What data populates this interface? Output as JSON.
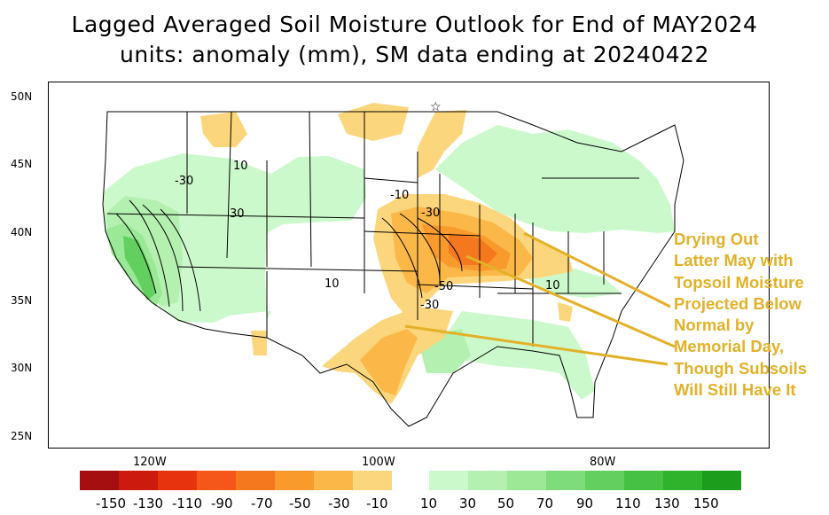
{
  "title": {
    "line1": "Lagged Averaged Soil Moisture Outlook for End of MAY2024",
    "line2": "units: anomaly (mm), SM data ending at 20240422"
  },
  "latitude_labels": [
    "50N",
    "45N",
    "40N",
    "35N",
    "30N",
    "25N"
  ],
  "longitude_labels": [
    "120W",
    "100W",
    "80W"
  ],
  "contour_labels": [
    "10",
    "-30",
    "-10",
    "-30",
    "-50",
    "-30",
    "10",
    "10",
    "30"
  ],
  "annotation": {
    "text": "Drying Out\nLatter May with\nTopsoil Moisture\nProjected Below\nNormal by\nMemorial Day,\nThough Subsoils\nWill Still Have It"
  },
  "colorbar": {
    "labels": [
      "-150",
      "-130",
      "-110",
      "-90",
      "-70",
      "-50",
      "-30",
      "-10",
      "10",
      "30",
      "50",
      "70",
      "90",
      "110",
      "130",
      "150"
    ],
    "colors": {
      "neg": [
        "#a50f0f",
        "#cc1a0f",
        "#e8330f",
        "#f5561a",
        "#f5781e",
        "#f99a2c",
        "#fbb849",
        "#fcd67c"
      ],
      "pos": [
        "#ccf9cc",
        "#b4f0b0",
        "#9be896",
        "#7fdc7a",
        "#62cf5e",
        "#46c143",
        "#2fb22c",
        "#1c9e1c"
      ]
    }
  },
  "colors": {
    "annotation": "#e3b128",
    "arrow": "#e3b128"
  }
}
